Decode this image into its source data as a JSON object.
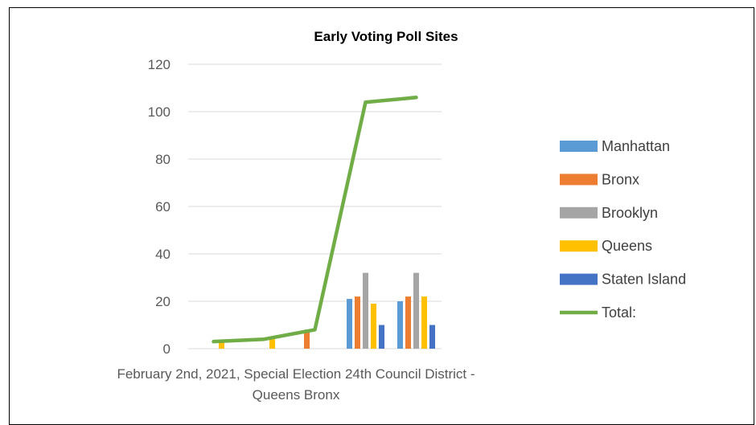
{
  "chart_data": {
    "type": "bar",
    "title": "Early Voting Poll Sites",
    "category_label_lines": [
      "February 2nd, 2021, Special Election 24th Council District -",
      "Queens Bronx"
    ],
    "x_groups": 5,
    "ylim": [
      0,
      120
    ],
    "yticks": [
      0,
      20,
      40,
      60,
      80,
      100,
      120
    ],
    "grid": true,
    "legend_position": "right",
    "series": [
      {
        "name": "Manhattan",
        "kind": "bar",
        "color": "#5B9BD5",
        "values": [
          0,
          0,
          0,
          21,
          20
        ]
      },
      {
        "name": "Bronx",
        "kind": "bar",
        "color": "#ED7D31",
        "values": [
          0,
          0,
          8,
          22,
          22
        ]
      },
      {
        "name": "Brooklyn",
        "kind": "bar",
        "color": "#A5A5A5",
        "values": [
          0,
          0,
          0,
          32,
          32
        ]
      },
      {
        "name": "Queens",
        "kind": "bar",
        "color": "#FFC000",
        "values": [
          3,
          4,
          0,
          19,
          22
        ]
      },
      {
        "name": "Staten Island",
        "kind": "bar",
        "color": "#4472C4",
        "values": [
          0,
          0,
          0,
          10,
          10
        ]
      },
      {
        "name": "Total:",
        "kind": "line",
        "color": "#70AD47",
        "values": [
          3,
          4,
          8,
          104,
          106
        ]
      }
    ]
  }
}
